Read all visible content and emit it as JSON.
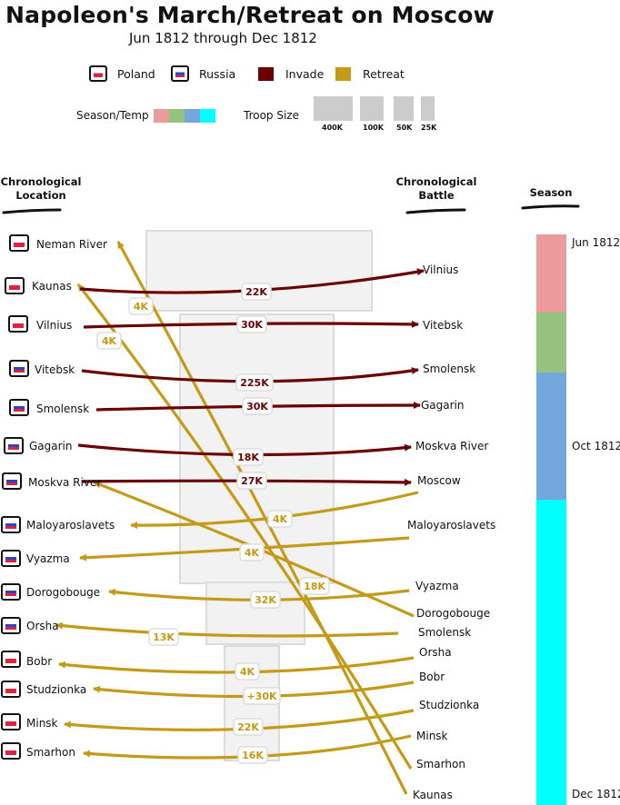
{
  "title": "Napoleon's March/Retreat on Moscow",
  "subtitle": "Jun 1812 through Dec 1812",
  "legend": {
    "poland": "Poland",
    "russia": "Russia",
    "invade": "Invade",
    "retreat": "Retreat",
    "season_temp": "Season/Temp",
    "troop_size": "Troop Size",
    "size_labels": [
      "400K",
      "100K",
      "50K",
      "25K"
    ],
    "season_colors": [
      "#eb9b9b",
      "#95c27f",
      "#74a7dd",
      "#00ffff"
    ],
    "invade_color": "#6a0000",
    "retreat_color": "#c49a17"
  },
  "headers": {
    "location": "Chronological Location",
    "battle": "Chronological Battle",
    "season": "Season"
  },
  "locations": [
    {
      "name": "Neman River",
      "flag": "poland"
    },
    {
      "name": "Kaunas",
      "flag": "poland"
    },
    {
      "name": "Vilnius",
      "flag": "poland"
    },
    {
      "name": "Vitebsk",
      "flag": "russia"
    },
    {
      "name": "Smolensk",
      "flag": "russia"
    },
    {
      "name": "Gagarin",
      "flag": "russia"
    },
    {
      "name": "Moskva River",
      "flag": "russia"
    },
    {
      "name": "Maloyaroslavets",
      "flag": "russia"
    },
    {
      "name": "Vyazma",
      "flag": "russia"
    },
    {
      "name": "Dorogobouge",
      "flag": "russia"
    },
    {
      "name": "Orsha",
      "flag": "russia"
    },
    {
      "name": "Bobr",
      "flag": "poland"
    },
    {
      "name": "Studzionka",
      "flag": "poland"
    },
    {
      "name": "Minsk",
      "flag": "poland"
    },
    {
      "name": "Smarhon",
      "flag": "poland"
    }
  ],
  "battles": [
    "Vilnius",
    "Vitebsk",
    "Smolensk",
    "Gagarin",
    "Moskva River",
    "Moscow",
    "Maloyaroslavets",
    "Vyazma",
    "Dorogobouge",
    "Smolensk",
    "Orsha",
    "Bobr",
    "Studzionka",
    "Minsk",
    "Smarhon",
    "Kaunas"
  ],
  "invade_flows": [
    {
      "from": "Kaunas",
      "to": "Vilnius",
      "label": "22K"
    },
    {
      "from": "Vilnius",
      "to": "Vitebsk",
      "label": "30K"
    },
    {
      "from": "Vitebsk",
      "to": "Smolensk",
      "label": "225K"
    },
    {
      "from": "Smolensk",
      "to": "Gagarin",
      "label": "30K"
    },
    {
      "from": "Gagarin",
      "to": "Moskva River",
      "label": "18K"
    },
    {
      "from": "Moskva River",
      "to": "Moscow",
      "label": "27K"
    }
  ],
  "retreat_flows": [
    {
      "from": "Moscow",
      "to": "Maloyaroslavets",
      "label": "4K"
    },
    {
      "from": "Maloyaroslavets",
      "to": "Vyazma",
      "label": "4K"
    },
    {
      "from": "Vyazma",
      "to": "Dorogobouge",
      "label": "32K"
    },
    {
      "from": "Dorogobouge",
      "to": "Moskva River",
      "label": "18K"
    },
    {
      "from": "Smolensk",
      "to": "Orsha",
      "label": "13K"
    },
    {
      "from": "Orsha",
      "to": "Bobr",
      "label": "4K"
    },
    {
      "from": "Bobr",
      "to": "Studzionka",
      "label": "+30K"
    },
    {
      "from": "Studzionka",
      "to": "Minsk",
      "label": "22K"
    },
    {
      "from": "Minsk",
      "to": "Smarhon",
      "label": "16K"
    },
    {
      "from": "Smarhon",
      "to": "Kaunas",
      "label": "4K"
    },
    {
      "from": "Kaunas",
      "to": "Neman River",
      "label": "4K"
    }
  ],
  "season_ticks": [
    "Jun 1812",
    "Oct 1812",
    "Dec 1812"
  ]
}
